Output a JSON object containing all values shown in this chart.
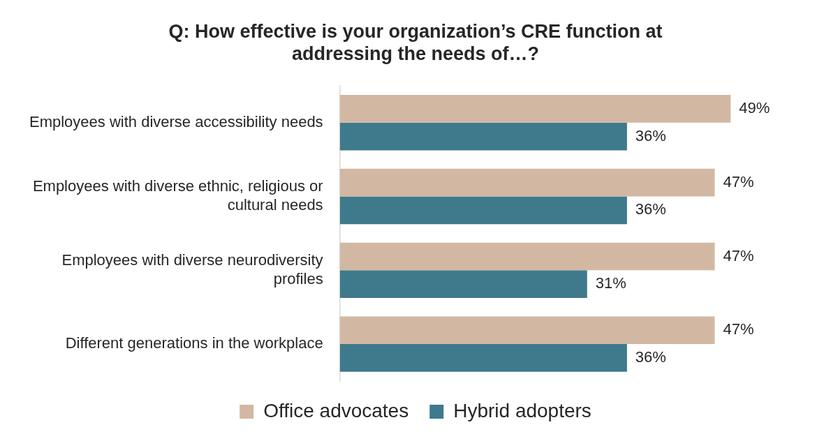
{
  "chart_data": {
    "type": "bar",
    "orientation": "horizontal",
    "title": "Q: How effective is your organization’s CRE function at addressing the needs of…?",
    "categories": [
      "Employees with diverse accessibility needs",
      "Employees with diverse ethnic, religious or cultural needs",
      "Employees with diverse neurodiversity profiles",
      "Different generations in the workplace"
    ],
    "series": [
      {
        "name": "Office advocates",
        "color": "#d2b8a3",
        "values": [
          49,
          47,
          47,
          47
        ],
        "value_labels": [
          "49%",
          "47%",
          "47%",
          "47%"
        ]
      },
      {
        "name": "Hybrid adopters",
        "color": "#3e7a8c",
        "values": [
          36,
          36,
          31,
          36
        ],
        "value_labels": [
          "36%",
          "36%",
          "31%",
          "36%"
        ]
      }
    ],
    "legend": "bottom",
    "tick_labels": "y"
  }
}
